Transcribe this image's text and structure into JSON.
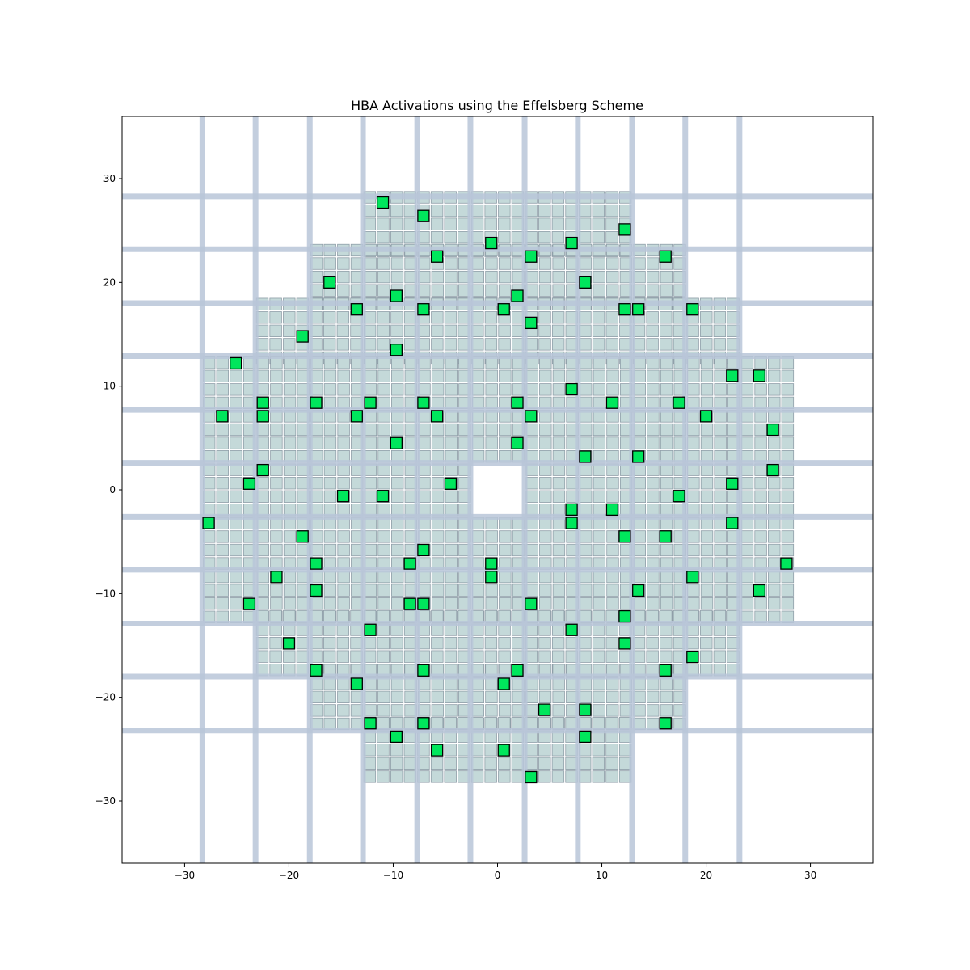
{
  "chart_data": {
    "type": "scatter",
    "title": "HBA Activations using the Effelsberg Scheme",
    "xlabel": "",
    "ylabel": "",
    "xlim": [
      -36,
      36
    ],
    "ylim": [
      -36,
      36
    ],
    "xticks": [
      -30,
      -20,
      -10,
      0,
      10,
      20,
      30
    ],
    "yticks": [
      30,
      20,
      10,
      0,
      -10,
      -20,
      -30
    ],
    "tick_labels": {
      "x": [
        "−30",
        "−20",
        "−10",
        "0",
        "10",
        "20",
        "30"
      ],
      "y": [
        "30",
        "20",
        "10",
        "0",
        "−10",
        "−20",
        "−30"
      ]
    },
    "grid": false,
    "tile_bands": {
      "vertical_x": [
        -28.3,
        -23.2,
        -18.0,
        -12.9,
        -7.7,
        -2.6,
        2.6,
        7.7,
        12.9,
        18.0,
        23.2
      ],
      "horizontal_y": [
        28.3,
        23.2,
        18.0,
        12.9,
        7.7,
        2.6,
        -2.6,
        -7.7,
        -12.9,
        -18.0,
        -23.2
      ]
    },
    "element_grid": {
      "pitch": 1.29,
      "row_extents": [
        {
          "y_from": 22.4,
          "y_to": 28.3,
          "x_from": -12.9,
          "x_to": 12.9
        },
        {
          "y_from": 17.3,
          "y_to": 23.2,
          "x_from": -18.0,
          "x_to": 18.0
        },
        {
          "y_from": 12.1,
          "y_to": 18.0,
          "x_from": -23.2,
          "x_to": 23.2
        },
        {
          "y_from": -12.9,
          "y_to": 12.9,
          "x_from": -28.3,
          "x_to": 28.3
        },
        {
          "y_from": -18.0,
          "y_to": -12.1,
          "x_from": -23.2,
          "x_to": 23.2
        },
        {
          "y_from": -23.2,
          "y_to": -17.3,
          "x_from": -18.0,
          "x_to": 18.0
        },
        {
          "y_from": -28.3,
          "y_to": -22.4,
          "x_from": -12.9,
          "x_to": 12.9
        }
      ],
      "hole": {
        "x_from": -2.6,
        "x_to": 2.6,
        "y_from": -2.6,
        "y_to": 2.6
      }
    },
    "series": [
      {
        "marker": "square",
        "points": [
          [
            -11.0,
            27.7
          ],
          [
            -7.1,
            26.4
          ],
          [
            12.2,
            25.1
          ],
          [
            -0.6,
            23.8
          ],
          [
            7.1,
            23.8
          ],
          [
            -5.8,
            22.5
          ],
          [
            3.2,
            22.5
          ],
          [
            16.1,
            22.5
          ],
          [
            -16.1,
            20.0
          ],
          [
            8.4,
            20.0
          ],
          [
            -9.7,
            18.7
          ],
          [
            1.9,
            18.7
          ],
          [
            -13.5,
            17.4
          ],
          [
            -7.1,
            17.4
          ],
          [
            0.6,
            17.4
          ],
          [
            12.2,
            17.4
          ],
          [
            13.5,
            17.4
          ],
          [
            18.7,
            17.4
          ],
          [
            3.2,
            16.1
          ],
          [
            -18.7,
            14.8
          ],
          [
            -9.7,
            13.5
          ],
          [
            -25.1,
            12.2
          ],
          [
            22.5,
            11.0
          ],
          [
            25.1,
            11.0
          ],
          [
            7.1,
            9.7
          ],
          [
            -22.5,
            8.4
          ],
          [
            -17.4,
            8.4
          ],
          [
            -12.2,
            8.4
          ],
          [
            -7.1,
            8.4
          ],
          [
            1.9,
            8.4
          ],
          [
            11.0,
            8.4
          ],
          [
            17.4,
            8.4
          ],
          [
            -26.4,
            7.1
          ],
          [
            -22.5,
            7.1
          ],
          [
            -13.5,
            7.1
          ],
          [
            -5.8,
            7.1
          ],
          [
            3.2,
            7.1
          ],
          [
            20.0,
            7.1
          ],
          [
            26.4,
            5.8
          ],
          [
            -9.7,
            4.5
          ],
          [
            1.9,
            4.5
          ],
          [
            8.4,
            3.2
          ],
          [
            13.5,
            3.2
          ],
          [
            -22.5,
            1.9
          ],
          [
            26.4,
            1.9
          ],
          [
            -23.8,
            0.6
          ],
          [
            -4.5,
            0.6
          ],
          [
            22.5,
            0.6
          ],
          [
            -14.8,
            -0.6
          ],
          [
            -11.0,
            -0.6
          ],
          [
            17.4,
            -0.6
          ],
          [
            7.1,
            -1.9
          ],
          [
            11.0,
            -1.9
          ],
          [
            -27.7,
            -3.2
          ],
          [
            7.1,
            -3.2
          ],
          [
            22.5,
            -3.2
          ],
          [
            -18.7,
            -4.5
          ],
          [
            12.2,
            -4.5
          ],
          [
            16.1,
            -4.5
          ],
          [
            -7.1,
            -5.8
          ],
          [
            -17.4,
            -7.1
          ],
          [
            -8.4,
            -7.1
          ],
          [
            -0.6,
            -7.1
          ],
          [
            27.7,
            -7.1
          ],
          [
            -21.2,
            -8.4
          ],
          [
            -0.6,
            -8.4
          ],
          [
            18.7,
            -8.4
          ],
          [
            -17.4,
            -9.7
          ],
          [
            13.5,
            -9.7
          ],
          [
            25.1,
            -9.7
          ],
          [
            -23.8,
            -11.0
          ],
          [
            -8.4,
            -11.0
          ],
          [
            -7.1,
            -11.0
          ],
          [
            3.2,
            -11.0
          ],
          [
            12.2,
            -12.2
          ],
          [
            -12.2,
            -13.5
          ],
          [
            7.1,
            -13.5
          ],
          [
            -20.0,
            -14.8
          ],
          [
            12.2,
            -14.8
          ],
          [
            18.7,
            -16.1
          ],
          [
            -17.4,
            -17.4
          ],
          [
            -7.1,
            -17.4
          ],
          [
            1.9,
            -17.4
          ],
          [
            16.1,
            -17.4
          ],
          [
            -13.5,
            -18.7
          ],
          [
            0.6,
            -18.7
          ],
          [
            4.5,
            -21.2
          ],
          [
            8.4,
            -21.2
          ],
          [
            -12.2,
            -22.5
          ],
          [
            -7.1,
            -22.5
          ],
          [
            16.1,
            -22.5
          ],
          [
            -9.7,
            -23.8
          ],
          [
            8.4,
            -23.8
          ],
          [
            -5.8,
            -25.1
          ],
          [
            0.6,
            -25.1
          ],
          [
            3.2,
            -27.7
          ]
        ]
      }
    ],
    "colors": {
      "tile_band": "#b9c5d8",
      "element_fill": "#c4d9d9",
      "element_edge": "#8f9ea8",
      "activated_fill": "#00e65c",
      "activated_edge": "#000000",
      "axes_edge": "#000000"
    }
  }
}
